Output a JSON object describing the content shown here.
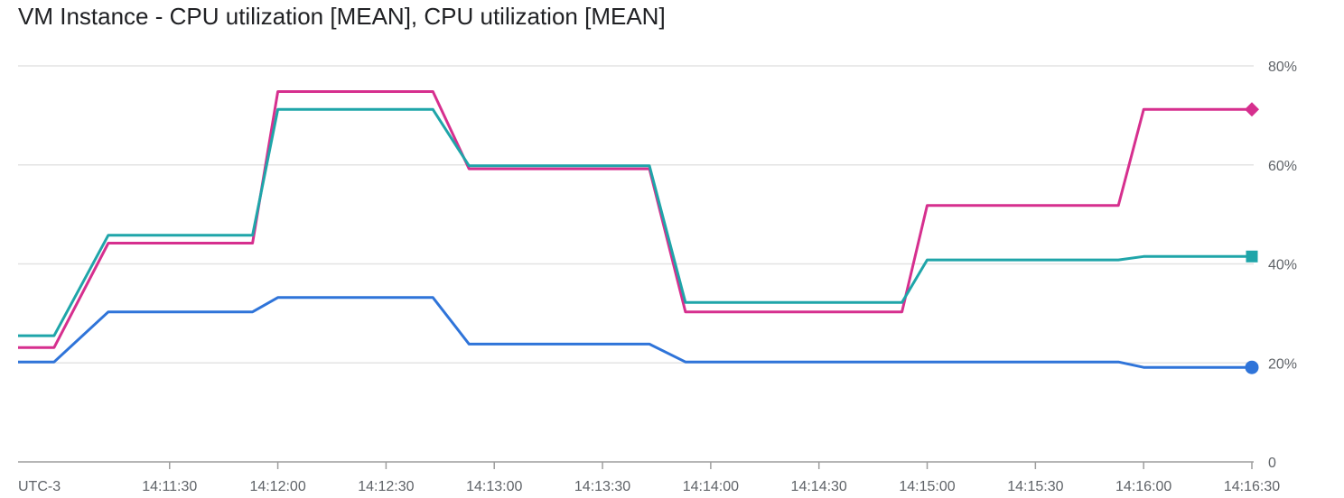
{
  "chart_data": {
    "type": "line",
    "title": "VM Instance - CPU utilization [MEAN], CPU utilization [MEAN]",
    "timezone_label": "UTC-3",
    "x_tick_labels": [
      "14:11:30",
      "14:12:00",
      "14:12:30",
      "14:13:00",
      "14:13:30",
      "14:14:00",
      "14:14:30",
      "14:15:00",
      "14:15:30",
      "14:16:00",
      "14:16:30"
    ],
    "y_tick_labels": [
      "0",
      "20%",
      "40%",
      "60%",
      "80%"
    ],
    "ylim": [
      0,
      80
    ],
    "grid": true,
    "x": [
      "14:10:48",
      "14:10:58",
      "14:11:13",
      "14:11:43",
      "14:11:53",
      "14:12:00",
      "14:12:30",
      "14:12:43",
      "14:12:53",
      "14:13:00",
      "14:13:43",
      "14:13:53",
      "14:14:00",
      "14:14:43",
      "14:14:53",
      "14:15:00",
      "14:15:43",
      "14:15:53",
      "14:16:00",
      "14:16:30"
    ],
    "series": [
      {
        "color": "#d62f8e",
        "marker": "diamond",
        "values": [
          23.1,
          23.1,
          44.2,
          44.2,
          44.2,
          74.8,
          74.8,
          74.8,
          59.2,
          59.2,
          59.2,
          30.3,
          30.3,
          30.3,
          30.3,
          51.8,
          51.8,
          51.8,
          71.2,
          71.2
        ]
      },
      {
        "color": "#1fa5a9",
        "marker": "square",
        "values": [
          25.5,
          25.5,
          45.8,
          45.8,
          45.8,
          71.2,
          71.2,
          71.2,
          59.8,
          59.8,
          59.8,
          32.2,
          32.2,
          32.2,
          32.2,
          40.8,
          40.8,
          40.8,
          41.5,
          41.5
        ]
      },
      {
        "color": "#2f74d9",
        "marker": "circle",
        "values": [
          20.2,
          20.2,
          30.3,
          30.3,
          30.3,
          33.2,
          33.2,
          33.2,
          23.8,
          23.8,
          23.8,
          20.2,
          20.2,
          20.2,
          20.2,
          20.2,
          20.2,
          20.2,
          19.1,
          19.1
        ]
      }
    ]
  }
}
